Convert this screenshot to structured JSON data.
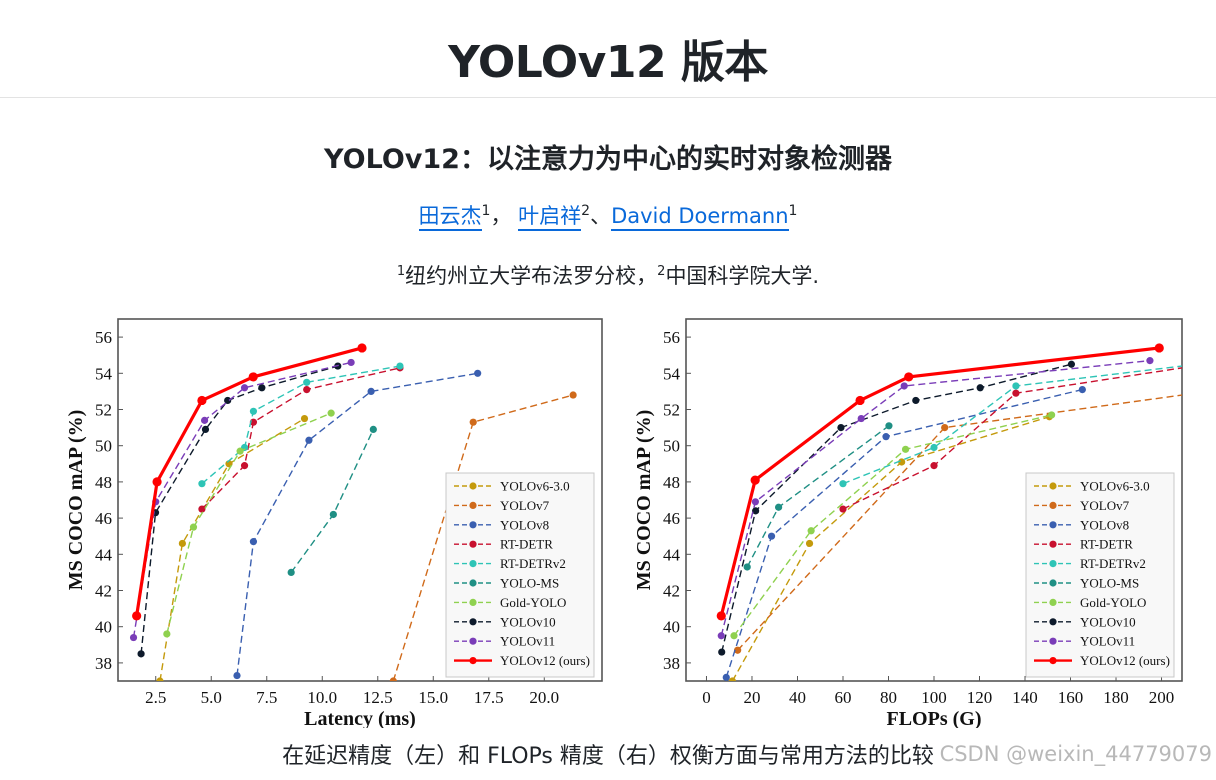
{
  "page": {
    "title": "YOLOv12 版本",
    "paper_title": "YOLOv12：以注意力为中心的实时对象检测器",
    "authors": [
      {
        "name": "田云杰",
        "sup": "1",
        "sep": "，"
      },
      {
        "name": "叶启祥",
        "sup": "2",
        "sep": "、"
      },
      {
        "name": "David Doermann",
        "sup": "1",
        "sep": ""
      }
    ],
    "affiliations": [
      {
        "sup": "1",
        "text": "纽约州立大学布法罗分校，"
      },
      {
        "sup": "2",
        "text": "中国科学院大学."
      }
    ],
    "caption": "在延迟精度（左）和 FLOPs 精度（右）权衡方面与常用方法的比较",
    "watermark": "CSDN @weixin_44779079"
  },
  "chart_data": [
    {
      "type": "line",
      "title": "",
      "xlabel": "Latency (ms)",
      "ylabel": "MS COCO mAP (%)",
      "xlim": [
        0.8,
        22.6
      ],
      "ylim": [
        37,
        57
      ],
      "xticks": [
        "2.5",
        "5.0",
        "7.5",
        "10.0",
        "12.5",
        "15.0",
        "17.5",
        "20.0"
      ],
      "yticks": [
        "38",
        "40",
        "42",
        "44",
        "46",
        "48",
        "50",
        "52",
        "54",
        "56"
      ],
      "grid": false,
      "legend": "bottom-right",
      "series": [
        {
          "name": "YOLOv6-3.0",
          "color": "#c49a0c",
          "dashed": true,
          "x": [
            2.69,
            3.7,
            5.8,
            9.2
          ],
          "y": [
            37.0,
            44.6,
            49.0,
            51.5
          ]
        },
        {
          "name": "YOLOv7",
          "color": "#d06a1a",
          "dashed": true,
          "x": [
            13.2,
            16.8,
            21.3
          ],
          "y": [
            37.0,
            51.3,
            52.8
          ]
        },
        {
          "name": "YOLOv8",
          "color": "#3a5fb0",
          "dashed": true,
          "x": [
            6.16,
            6.9,
            9.4,
            12.2,
            17.0
          ],
          "y": [
            37.3,
            44.7,
            50.3,
            53.0,
            54.0
          ]
        },
        {
          "name": "RT-DETR",
          "color": "#c8102e",
          "dashed": true,
          "x": [
            4.58,
            6.5,
            6.9,
            9.3,
            13.5
          ],
          "y": [
            46.5,
            48.9,
            51.3,
            53.1,
            54.3
          ]
        },
        {
          "name": "RT-DETRv2",
          "color": "#2ec4b6",
          "dashed": true,
          "x": [
            4.58,
            6.5,
            6.9,
            9.3,
            13.5
          ],
          "y": [
            47.9,
            49.9,
            51.9,
            53.5,
            54.4
          ]
        },
        {
          "name": "YOLO-MS",
          "color": "#1f8f84",
          "dashed": true,
          "x": [
            8.6,
            10.5,
            12.3
          ],
          "y": [
            43.0,
            46.2,
            50.9
          ]
        },
        {
          "name": "Gold-YOLO",
          "color": "#8fd14f",
          "dashed": true,
          "x": [
            3.0,
            4.2,
            6.3,
            10.4
          ],
          "y": [
            39.6,
            45.5,
            49.7,
            51.8
          ]
        },
        {
          "name": "YOLOv10",
          "color": "#0d1a2b",
          "dashed": true,
          "x": [
            1.84,
            2.49,
            4.74,
            5.74,
            7.28,
            10.7
          ],
          "y": [
            38.5,
            46.3,
            50.9,
            52.5,
            53.2,
            54.4
          ]
        },
        {
          "name": "YOLOv11",
          "color": "#7a3db8",
          "dashed": true,
          "x": [
            1.5,
            2.5,
            4.7,
            6.5,
            11.3
          ],
          "y": [
            39.4,
            46.9,
            51.4,
            53.2,
            54.6
          ]
        },
        {
          "name": "YOLOv12 (ours)",
          "color": "#ff0000",
          "dashed": false,
          "x": [
            1.64,
            2.56,
            4.58,
            6.89,
            11.79
          ],
          "y": [
            40.6,
            48.0,
            52.5,
            53.8,
            55.4
          ]
        }
      ]
    },
    {
      "type": "line",
      "title": "",
      "xlabel": "FLOPs (G)",
      "ylabel": "MS COCO mAP (%)",
      "xlim": [
        -9,
        209
      ],
      "ylim": [
        37,
        57
      ],
      "xticks": [
        "0",
        "20",
        "40",
        "60",
        "80",
        "100",
        "120",
        "140",
        "160",
        "180",
        "200"
      ],
      "yticks": [
        "38",
        "40",
        "42",
        "44",
        "46",
        "48",
        "50",
        "52",
        "54",
        "56"
      ],
      "grid": false,
      "legend": "bottom-right",
      "series": [
        {
          "name": "YOLOv6-3.0",
          "color": "#c49a0c",
          "dashed": true,
          "x": [
            11.4,
            45.3,
            85.8,
            150.7
          ],
          "y": [
            37.0,
            44.6,
            49.1,
            51.6
          ]
        },
        {
          "name": "YOLOv7",
          "color": "#d06a1a",
          "dashed": true,
          "x": [
            13.7,
            104.7,
            209
          ],
          "y": [
            38.7,
            51.0,
            52.8
          ]
        },
        {
          "name": "YOLOv8",
          "color": "#3a5fb0",
          "dashed": true,
          "x": [
            8.7,
            28.6,
            78.9,
            165.2
          ],
          "y": [
            37.2,
            45.0,
            50.5,
            53.1
          ]
        },
        {
          "name": "RT-DETR",
          "color": "#c8102e",
          "dashed": true,
          "x": [
            60,
            100,
            136,
            209
          ],
          "y": [
            46.5,
            48.9,
            52.9,
            54.3
          ]
        },
        {
          "name": "RT-DETRv2",
          "color": "#2ec4b6",
          "dashed": true,
          "x": [
            60,
            100,
            136,
            209
          ],
          "y": [
            47.9,
            49.9,
            53.3,
            54.4
          ]
        },
        {
          "name": "YOLO-MS",
          "color": "#1f8f84",
          "dashed": true,
          "x": [
            17.9,
            31.7,
            80.2
          ],
          "y": [
            43.3,
            46.6,
            51.1
          ]
        },
        {
          "name": "Gold-YOLO",
          "color": "#8fd14f",
          "dashed": true,
          "x": [
            12.1,
            46.0,
            87.5,
            151.7
          ],
          "y": [
            39.5,
            45.3,
            49.8,
            51.7
          ]
        },
        {
          "name": "YOLOv10",
          "color": "#0d1a2b",
          "dashed": true,
          "x": [
            6.7,
            21.6,
            59.1,
            92.0,
            120.3,
            160.4
          ],
          "y": [
            38.6,
            46.4,
            51.0,
            52.5,
            53.2,
            54.5
          ]
        },
        {
          "name": "YOLOv11",
          "color": "#7a3db8",
          "dashed": true,
          "x": [
            6.5,
            21.5,
            68.0,
            86.9,
            194.9
          ],
          "y": [
            39.5,
            46.9,
            51.5,
            53.3,
            54.7
          ]
        },
        {
          "name": "YOLOv12 (ours)",
          "color": "#ff0000",
          "dashed": false,
          "x": [
            6.5,
            21.4,
            67.5,
            88.9,
            199.0
          ],
          "y": [
            40.6,
            48.1,
            52.5,
            53.8,
            55.4
          ]
        }
      ]
    }
  ]
}
